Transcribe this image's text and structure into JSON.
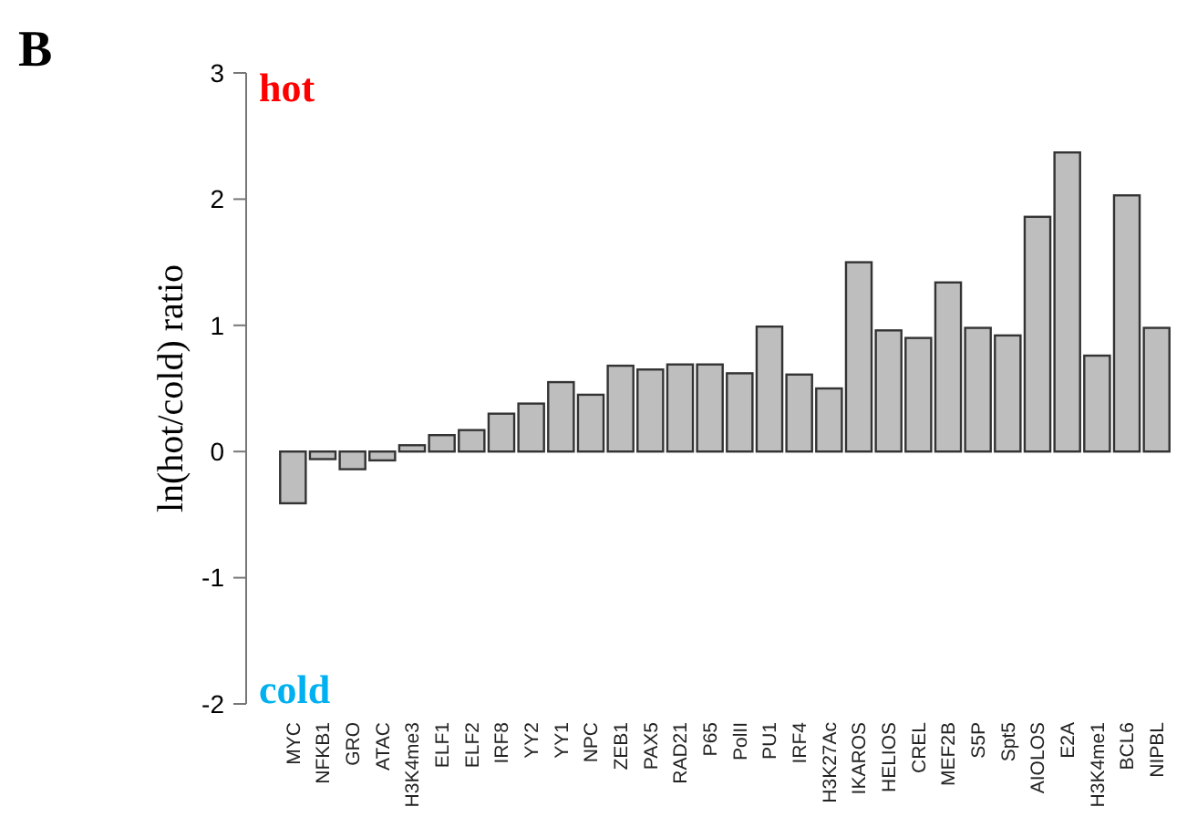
{
  "chart_data": {
    "type": "bar",
    "ylabel": "ln(hot/cold) ratio",
    "categories": [
      "MYC",
      "NFKB1",
      "GRO",
      "ATAC",
      "H3K4me3",
      "ELF1",
      "ELF2",
      "IRF8",
      "YY2",
      "YY1",
      "NPC",
      "ZEB1",
      "PAX5",
      "RAD21",
      "P65",
      "PolII",
      "PU1",
      "IRF4",
      "H3K27Ac",
      "IKAROS",
      "HELIOS",
      "CREL",
      "MEF2B",
      "S5P",
      "Spt5",
      "AIOLOS",
      "E2A",
      "H3K4me1",
      "BCL6",
      "NIPBL"
    ],
    "values": [
      -0.41,
      -0.06,
      -0.14,
      -0.07,
      0.05,
      0.13,
      0.17,
      0.3,
      0.38,
      0.55,
      0.45,
      0.68,
      0.65,
      0.69,
      0.69,
      0.62,
      0.99,
      0.61,
      0.5,
      1.5,
      0.96,
      0.9,
      1.34,
      0.98,
      0.92,
      1.86,
      2.37,
      0.76,
      2.03,
      0.98
    ],
    "color": "#bebebe",
    "ylim": [
      -2,
      3
    ],
    "yticks": [
      -2,
      -1,
      0,
      1,
      2,
      3
    ],
    "annotations": [
      "B",
      "hot",
      "cold"
    ]
  }
}
